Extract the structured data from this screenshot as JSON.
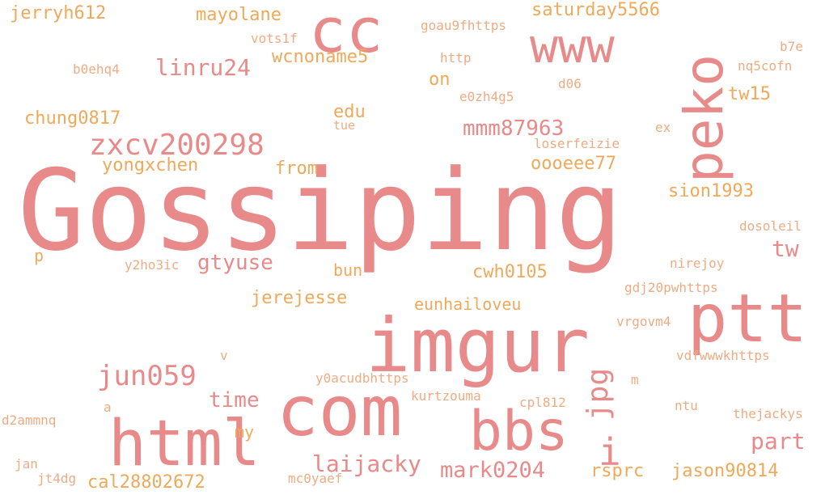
{
  "palette": {
    "pink": "#e98a8a",
    "orange": "#eea95a",
    "peach": "#eeac84"
  },
  "words": [
    {
      "text": "Gossiping",
      "color": "pink"
    },
    {
      "text": "imgur",
      "color": "pink"
    },
    {
      "text": "ptt",
      "color": "pink"
    },
    {
      "text": "com",
      "color": "pink"
    },
    {
      "text": "html",
      "color": "pink"
    },
    {
      "text": "cc",
      "color": "pink"
    },
    {
      "text": "bbs",
      "color": "pink"
    },
    {
      "text": "www",
      "color": "pink"
    },
    {
      "text": "peko",
      "color": "pink"
    },
    {
      "text": "zxcv200298",
      "color": "pink"
    },
    {
      "text": "jun059",
      "color": "pink"
    },
    {
      "text": "jpg",
      "color": "pink"
    },
    {
      "text": "i",
      "color": "pink"
    },
    {
      "text": "linru24",
      "color": "pink"
    },
    {
      "text": "mmm87963",
      "color": "pink"
    },
    {
      "text": "laijacky",
      "color": "pink"
    },
    {
      "text": "mark0204",
      "color": "pink"
    },
    {
      "text": "part",
      "color": "pink"
    },
    {
      "text": "gtyuse",
      "color": "pink"
    },
    {
      "text": "time",
      "color": "pink"
    },
    {
      "text": "tw",
      "color": "pink"
    },
    {
      "text": "jerryh612",
      "color": "orange"
    },
    {
      "text": "mayolane",
      "color": "orange"
    },
    {
      "text": "saturday5566",
      "color": "orange"
    },
    {
      "text": "wcnoname5",
      "color": "orange"
    },
    {
      "text": "chung0817",
      "color": "orange"
    },
    {
      "text": "yongxchen",
      "color": "orange"
    },
    {
      "text": "from",
      "color": "orange"
    },
    {
      "text": "oooeee77",
      "color": "orange"
    },
    {
      "text": "sion1993",
      "color": "orange"
    },
    {
      "text": "tw15",
      "color": "orange"
    },
    {
      "text": "edu",
      "color": "orange"
    },
    {
      "text": "on",
      "color": "orange"
    },
    {
      "text": "jerejesse",
      "color": "orange"
    },
    {
      "text": "eunhailoveu",
      "color": "orange"
    },
    {
      "text": "cwh0105",
      "color": "orange"
    },
    {
      "text": "bun",
      "color": "orange"
    },
    {
      "text": "my",
      "color": "orange"
    },
    {
      "text": "rsprc",
      "color": "orange"
    },
    {
      "text": "jason90814",
      "color": "orange"
    },
    {
      "text": "cal28802672",
      "color": "orange"
    },
    {
      "text": "p",
      "color": "orange"
    },
    {
      "text": "vots1f",
      "color": "peach"
    },
    {
      "text": "goau9fhttps",
      "color": "peach"
    },
    {
      "text": "http",
      "color": "peach"
    },
    {
      "text": "b0ehq4",
      "color": "peach"
    },
    {
      "text": "b7e",
      "color": "peach"
    },
    {
      "text": "nq5cofn",
      "color": "peach"
    },
    {
      "text": "d06",
      "color": "peach"
    },
    {
      "text": "e0zh4g5",
      "color": "peach"
    },
    {
      "text": "tue",
      "color": "peach"
    },
    {
      "text": "ex",
      "color": "peach"
    },
    {
      "text": "loserfeizie",
      "color": "peach"
    },
    {
      "text": "dosoleil",
      "color": "peach"
    },
    {
      "text": "y2ho3ic",
      "color": "peach"
    },
    {
      "text": "nirejoy",
      "color": "peach"
    },
    {
      "text": "gdj20pwhttps",
      "color": "peach"
    },
    {
      "text": "vrgovm4",
      "color": "peach"
    },
    {
      "text": "vdfwwwkhttps",
      "color": "peach"
    },
    {
      "text": "y0acudbhttps",
      "color": "peach"
    },
    {
      "text": "kurtzouma",
      "color": "peach"
    },
    {
      "text": "cpl812",
      "color": "peach"
    },
    {
      "text": "ntu",
      "color": "peach"
    },
    {
      "text": "thejackys",
      "color": "peach"
    },
    {
      "text": "d2ammnq",
      "color": "peach"
    },
    {
      "text": "jan",
      "color": "peach"
    },
    {
      "text": "jt4dg",
      "color": "peach"
    },
    {
      "text": "mc0yaef",
      "color": "peach"
    },
    {
      "text": "a",
      "color": "peach"
    },
    {
      "text": "v",
      "color": "peach"
    },
    {
      "text": "m",
      "color": "peach"
    }
  ]
}
